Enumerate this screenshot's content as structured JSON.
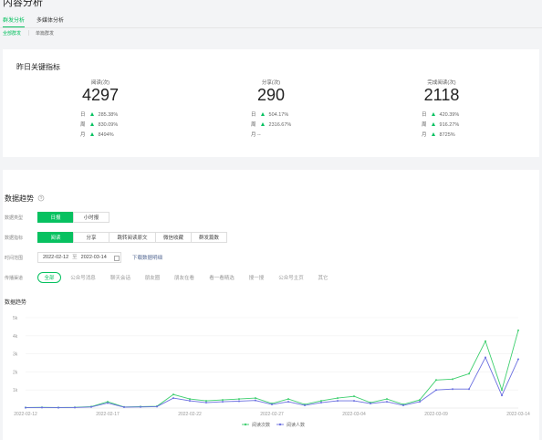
{
  "header": {
    "title": "内容分析",
    "tabs": [
      "群发分析",
      "多媒体分析"
    ],
    "active_tab": 0,
    "subtabs": [
      "全部群发",
      "单篇群发"
    ],
    "active_subtab": 0
  },
  "key_metrics": {
    "title": "昨日关键指标",
    "metrics": [
      {
        "label": "阅读(次)",
        "value": 4297,
        "changes": [
          {
            "period": "日",
            "value": "285.38%"
          },
          {
            "period": "周",
            "value": "830.09%"
          },
          {
            "period": "月",
            "value": "8494%"
          }
        ]
      },
      {
        "label": "分享(次)",
        "value": 290,
        "changes": [
          {
            "period": "日",
            "value": "504.17%"
          },
          {
            "period": "周",
            "value": "2316.67%"
          },
          {
            "period": "月",
            "value": "--"
          }
        ]
      },
      {
        "label": "完成阅读(次)",
        "value": 2118,
        "changes": [
          {
            "period": "日",
            "value": "420.39%"
          },
          {
            "period": "周",
            "value": "916.27%"
          },
          {
            "period": "月",
            "value": "8725%"
          }
        ]
      }
    ]
  },
  "trend": {
    "title": "数据趋势",
    "data_type": {
      "label": "数据类型",
      "options": [
        "日报",
        "小时报"
      ],
      "active": 0
    },
    "indicator": {
      "label": "数据指标",
      "options": [
        "阅读",
        "分享",
        "跳转阅读原文",
        "微信收藏",
        "群发篇数"
      ],
      "active": 0
    },
    "time_range": {
      "label": "时间范围",
      "start": "2022-02-12",
      "separator": "至",
      "end": "2022-03-14",
      "download": "下载数据明细"
    },
    "channel": {
      "label": "传播渠道",
      "options": [
        "全部",
        "公众号消息",
        "聊天会话",
        "朋友圈",
        "朋友在看",
        "看一看精选",
        "搜一搜",
        "公众号主页",
        "其它"
      ],
      "active": 0
    }
  },
  "chart_data": {
    "type": "line",
    "title": "数据趋势",
    "categories": [
      "2022-02-12",
      null,
      null,
      null,
      null,
      "2022-02-17",
      null,
      null,
      null,
      null,
      "2022-02-22",
      null,
      null,
      null,
      null,
      "2022-02-27",
      null,
      null,
      null,
      null,
      "2022-03-04",
      null,
      null,
      null,
      null,
      "2022-03-09",
      null,
      null,
      null,
      null,
      "2022-03-14"
    ],
    "series": [
      {
        "name": "阅读次数",
        "color": "#3fcf6f",
        "values": [
          30,
          40,
          30,
          40,
          80,
          350,
          60,
          80,
          100,
          750,
          500,
          400,
          450,
          500,
          550,
          250,
          500,
          200,
          400,
          550,
          650,
          300,
          500,
          200,
          450,
          1550,
          1600,
          1900,
          3700,
          1000,
          4300
        ]
      },
      {
        "name": "阅读人数",
        "color": "#6a6fe0",
        "values": [
          20,
          30,
          20,
          30,
          60,
          280,
          50,
          60,
          80,
          550,
          400,
          300,
          350,
          380,
          420,
          200,
          350,
          150,
          300,
          400,
          400,
          250,
          350,
          150,
          350,
          1000,
          1050,
          1050,
          2800,
          700,
          2700
        ]
      }
    ],
    "ylim": [
      0,
      5000
    ],
    "yticks": [
      {
        "value": 1000,
        "label": "1k"
      },
      {
        "value": 2000,
        "label": "2k"
      },
      {
        "value": 3000,
        "label": "3k"
      },
      {
        "value": 4000,
        "label": "4k"
      },
      {
        "value": 5000,
        "label": "5k"
      }
    ],
    "grid": true,
    "legend": "bottom"
  }
}
